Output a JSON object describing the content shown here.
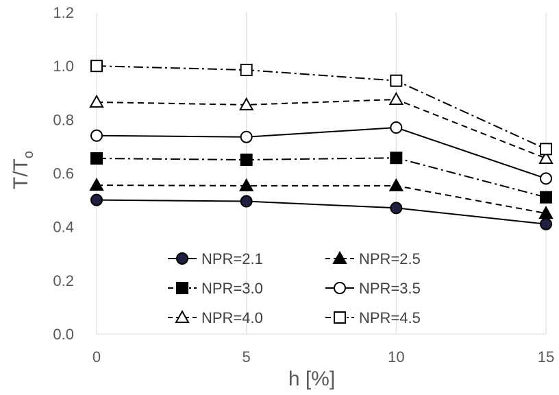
{
  "chart_data": {
    "type": "line",
    "x": [
      0,
      5,
      10,
      15
    ],
    "xlabel": "h [%]",
    "ylabel_main": "T/T",
    "ylabel_sub": "o",
    "xlim": [
      0,
      15
    ],
    "ylim": [
      0,
      1.2
    ],
    "xticks": [
      "0",
      "5",
      "10",
      "15"
    ],
    "yticks": [
      "0.0",
      "0.2",
      "0.4",
      "0.6",
      "0.8",
      "1.0",
      "1.2"
    ],
    "grid": "vertical",
    "legend_position": "lower-center inside",
    "series": [
      {
        "name": "NPR=2.1",
        "values": [
          0.5,
          0.495,
          0.47,
          0.41
        ],
        "line": "solid",
        "marker": "circle",
        "filled": true,
        "color": "#000000",
        "marker_fill": "#1f1f3f"
      },
      {
        "name": "NPR=2.5",
        "values": [
          0.555,
          0.553,
          0.553,
          0.45
        ],
        "line": "dashed",
        "marker": "triangle",
        "filled": true,
        "color": "#000000",
        "marker_fill": "#000000"
      },
      {
        "name": "NPR=3.0",
        "values": [
          0.655,
          0.65,
          0.657,
          0.51
        ],
        "line": "dashdot",
        "marker": "square",
        "filled": true,
        "color": "#000000",
        "marker_fill": "#000000"
      },
      {
        "name": "NPR=3.5",
        "values": [
          0.74,
          0.735,
          0.77,
          0.58
        ],
        "line": "solid",
        "marker": "circle",
        "filled": false,
        "color": "#000000",
        "marker_fill": "#ffffff"
      },
      {
        "name": "NPR=4.0",
        "values": [
          0.865,
          0.855,
          0.875,
          0.655
        ],
        "line": "dashed",
        "marker": "triangle",
        "filled": false,
        "color": "#000000",
        "marker_fill": "#ffffff"
      },
      {
        "name": "NPR=4.5",
        "values": [
          1.0,
          0.985,
          0.945,
          0.69
        ],
        "line": "dashdot",
        "marker": "square",
        "filled": false,
        "color": "#000000",
        "marker_fill": "#ffffff"
      }
    ]
  }
}
